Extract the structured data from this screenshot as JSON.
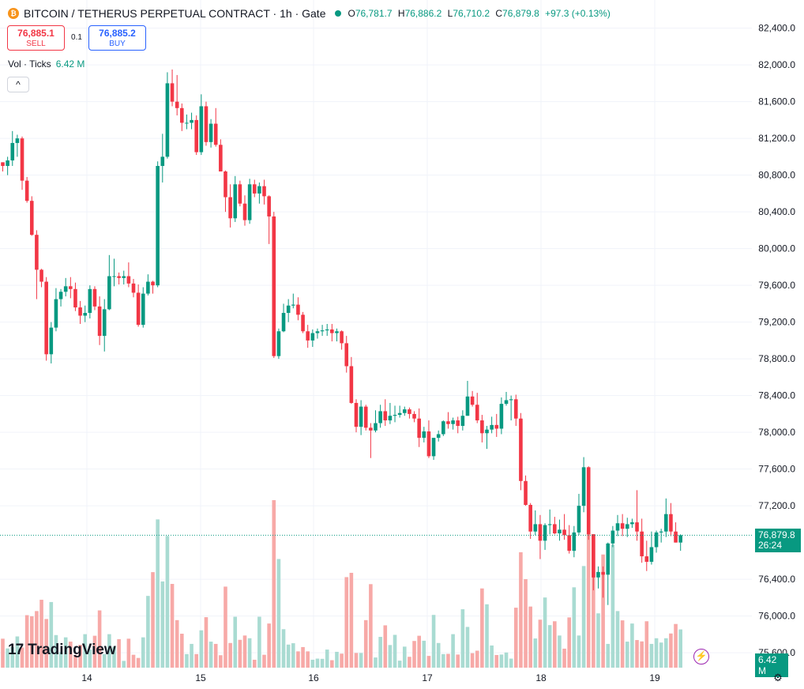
{
  "header": {
    "coin_glyph": "₿",
    "title": "BITCOIN / TETHERUS PERPETUAL CONTRACT · 1h · Gate",
    "o_label": "O",
    "o": "76,781.7",
    "h_label": "H",
    "h": "76,886.2",
    "l_label": "L",
    "l": "76,710.2",
    "c_label": "C",
    "c": "76,879.8",
    "change": "+97.3 (+0.13%)"
  },
  "trade": {
    "sell_price": "76,885.1",
    "sell_label": "SELL",
    "spread": "0.1",
    "buy_price": "76,885.2",
    "buy_label": "BUY"
  },
  "volume_legend": {
    "label": "Vol · Ticks",
    "value": "6.42 M"
  },
  "price_tag": {
    "price": "76,879.8",
    "countdown": "26:24"
  },
  "volume_tag": "6.42 M",
  "branding": {
    "logo": "TradingView"
  },
  "icons": {
    "collapse": "chevron-up-icon",
    "lightning": "lightning-icon",
    "settings": "gear-icon"
  },
  "colors": {
    "up": "#089981",
    "down": "#f23645",
    "up_vol": "#a9dbd2",
    "down_vol": "#f7a9a7",
    "grid": "#f0f3fa"
  },
  "chart_data": {
    "type": "candlestick",
    "title": "BITCOIN / TETHERUS PERPETUAL CONTRACT · 1h · Gate",
    "interval": "1h",
    "y_axis_labels": [
      "82,400.0",
      "82,000.0",
      "81,600.0",
      "81,200.0",
      "80,800.0",
      "80,400.0",
      "80,000.0",
      "79,600.0",
      "79,200.0",
      "78,800.0",
      "78,400.0",
      "78,000.0",
      "77,600.0",
      "77,200.0",
      "76,400.0",
      "76,000.0",
      "75,600.0"
    ],
    "ylim": [
      75500,
      82500
    ],
    "x_tick_labels": [
      "14",
      "15",
      "16",
      "17",
      "18",
      "19"
    ],
    "last_price": 76879.8,
    "volume_peak": 7400,
    "candles": [
      [
        80940,
        80940,
        80840,
        80900,
        1280
      ],
      [
        80900,
        81000,
        80800,
        80960,
        850
      ],
      [
        80960,
        81280,
        80900,
        81150,
        910
      ],
      [
        81150,
        81240,
        81000,
        81200,
        1380
      ],
      [
        81200,
        81220,
        80640,
        80740,
        890
      ],
      [
        80740,
        80780,
        80500,
        80520,
        2320
      ],
      [
        80520,
        80570,
        80140,
        80150,
        2270
      ],
      [
        80150,
        80200,
        79450,
        79770,
        2500
      ],
      [
        79770,
        79780,
        79580,
        79640,
        3000
      ],
      [
        79640,
        79690,
        78780,
        78850,
        2150
      ],
      [
        78850,
        79200,
        78750,
        79140,
        2900
      ],
      [
        79140,
        79570,
        79100,
        79450,
        1440
      ],
      [
        79450,
        79560,
        79370,
        79530,
        690
      ],
      [
        79530,
        79680,
        79480,
        79590,
        1340
      ],
      [
        79590,
        79690,
        79460,
        79560,
        1150
      ],
      [
        79560,
        79630,
        79320,
        79360,
        560
      ],
      [
        79360,
        79430,
        79180,
        79270,
        1010
      ],
      [
        79270,
        79380,
        79200,
        79300,
        1480
      ],
      [
        79300,
        79600,
        79240,
        79560,
        800
      ],
      [
        79560,
        79590,
        79330,
        79370,
        1410
      ],
      [
        79370,
        79480,
        78950,
        79050,
        2530
      ],
      [
        79050,
        79450,
        78880,
        79340,
        600
      ],
      [
        79340,
        79930,
        79330,
        79700,
        1480
      ],
      [
        79700,
        79890,
        79590,
        79700,
        930
      ],
      [
        79700,
        79740,
        79610,
        79680,
        1260
      ],
      [
        79680,
        79760,
        79610,
        79700,
        300
      ],
      [
        79700,
        79850,
        79580,
        79620,
        1280
      ],
      [
        79620,
        79670,
        79470,
        79520,
        570
      ],
      [
        79520,
        79610,
        79150,
        79170,
        430
      ],
      [
        79170,
        79580,
        79140,
        79510,
        1340
      ],
      [
        79510,
        79720,
        79490,
        79640,
        3170
      ],
      [
        79640,
        79650,
        79510,
        79600,
        4220
      ],
      [
        79600,
        80950,
        79580,
        80900,
        6550
      ],
      [
        80900,
        81250,
        80720,
        81000,
        3810
      ],
      [
        81000,
        81920,
        80980,
        81800,
        5820
      ],
      [
        81800,
        81950,
        81550,
        81600,
        3700
      ],
      [
        81600,
        81890,
        81450,
        81530,
        2100
      ],
      [
        81530,
        81580,
        81280,
        81370,
        1500
      ],
      [
        81370,
        81460,
        81300,
        81370,
        600
      ],
      [
        81370,
        81480,
        81300,
        81400,
        1050
      ],
      [
        81400,
        81450,
        81020,
        81050,
        600
      ],
      [
        81050,
        81680,
        81020,
        81550,
        1650
      ],
      [
        81550,
        81600,
        81120,
        81160,
        2230
      ],
      [
        81160,
        81410,
        81100,
        81360,
        1150
      ],
      [
        81360,
        81530,
        81110,
        81130,
        1050
      ],
      [
        81130,
        81190,
        80840,
        80840,
        550
      ],
      [
        80840,
        80850,
        80400,
        80560,
        3580
      ],
      [
        80560,
        80700,
        80230,
        80330,
        1090
      ],
      [
        80330,
        80790,
        80290,
        80700,
        2250
      ],
      [
        80700,
        80740,
        80460,
        80490,
        1230
      ],
      [
        80490,
        80580,
        80250,
        80310,
        1420
      ],
      [
        80310,
        80760,
        80270,
        80700,
        1300
      ],
      [
        80700,
        80750,
        80560,
        80600,
        350
      ],
      [
        80600,
        80720,
        80490,
        80680,
        2250
      ],
      [
        80680,
        80750,
        80480,
        80570,
        570
      ],
      [
        80570,
        80580,
        80050,
        80350,
        1950
      ],
      [
        80350,
        80400,
        78810,
        78830,
        7400
      ],
      [
        78830,
        79130,
        78800,
        79100,
        4800
      ],
      [
        79100,
        79400,
        79090,
        79300,
        1700
      ],
      [
        79300,
        79450,
        79200,
        79380,
        1020
      ],
      [
        79380,
        79510,
        79350,
        79390,
        1080
      ],
      [
        79390,
        79470,
        79220,
        79280,
        720
      ],
      [
        79280,
        79310,
        79080,
        79100,
        910
      ],
      [
        79100,
        79170,
        78920,
        79000,
        720
      ],
      [
        79000,
        79120,
        78930,
        79080,
        350
      ],
      [
        79080,
        79130,
        79020,
        79100,
        400
      ],
      [
        79100,
        79170,
        79050,
        79110,
        390
      ],
      [
        79110,
        79180,
        79050,
        79120,
        800
      ],
      [
        79120,
        79180,
        78990,
        79080,
        330
      ],
      [
        79080,
        79130,
        78990,
        79100,
        700
      ],
      [
        79100,
        79110,
        78900,
        78970,
        620
      ],
      [
        78970,
        79050,
        78650,
        78720,
        4000
      ],
      [
        78720,
        78820,
        78310,
        78320,
        4190
      ],
      [
        78320,
        78360,
        78000,
        78060,
        650
      ],
      [
        78060,
        78350,
        77970,
        78280,
        650
      ],
      [
        78280,
        78300,
        78020,
        78050,
        2100
      ],
      [
        78050,
        78100,
        77720,
        78020,
        3690
      ],
      [
        78020,
        78240,
        78000,
        78100,
        450
      ],
      [
        78100,
        78300,
        78050,
        78230,
        1360
      ],
      [
        78230,
        78360,
        78070,
        78130,
        1870
      ],
      [
        78130,
        78320,
        78090,
        78180,
        1000
      ],
      [
        78180,
        78290,
        78110,
        78190,
        1450
      ],
      [
        78190,
        78290,
        78160,
        78210,
        310
      ],
      [
        78210,
        78280,
        78180,
        78250,
        930
      ],
      [
        78250,
        78270,
        78150,
        78200,
        480
      ],
      [
        78200,
        78230,
        78110,
        78150,
        1180
      ],
      [
        78150,
        78260,
        77840,
        77940,
        1410
      ],
      [
        77940,
        78060,
        77890,
        78010,
        1190
      ],
      [
        78010,
        78130,
        77720,
        77740,
        520
      ],
      [
        77740,
        77930,
        77700,
        77940,
        2330
      ],
      [
        77940,
        78020,
        77900,
        77980,
        1090
      ],
      [
        77980,
        78130,
        77960,
        78120,
        600
      ],
      [
        78120,
        78220,
        78040,
        78090,
        610
      ],
      [
        78090,
        78160,
        78030,
        78130,
        1480
      ],
      [
        78130,
        78170,
        77990,
        78070,
        580
      ],
      [
        78070,
        78240,
        78020,
        78180,
        2580
      ],
      [
        78180,
        78560,
        78180,
        78390,
        1800
      ],
      [
        78390,
        78450,
        78280,
        78300,
        640
      ],
      [
        78300,
        78430,
        78100,
        78130,
        750
      ],
      [
        78130,
        78190,
        77890,
        77990,
        3500
      ],
      [
        77990,
        78070,
        77820,
        78030,
        2800
      ],
      [
        78030,
        78170,
        77990,
        78080,
        980
      ],
      [
        78080,
        78200,
        77950,
        78040,
        560
      ],
      [
        78040,
        78380,
        77980,
        78310,
        580
      ],
      [
        78310,
        78440,
        78290,
        78350,
        670
      ],
      [
        78350,
        78400,
        78130,
        78360,
        400
      ],
      [
        78360,
        78410,
        78070,
        78150,
        2650
      ],
      [
        78150,
        78210,
        77370,
        77470,
        5100
      ],
      [
        77470,
        77530,
        77200,
        77210,
        3910
      ],
      [
        77210,
        77230,
        76840,
        76920,
        2700
      ],
      [
        76920,
        77150,
        76880,
        77000,
        1290
      ],
      [
        77000,
        77100,
        76620,
        76820,
        2120
      ],
      [
        76820,
        77010,
        76720,
        76990,
        3100
      ],
      [
        76990,
        77160,
        76890,
        77000,
        1880
      ],
      [
        77000,
        77080,
        76890,
        76900,
        2050
      ],
      [
        76900,
        77050,
        76820,
        76940,
        1420
      ],
      [
        76940,
        77110,
        76830,
        76880,
        840
      ],
      [
        76880,
        76990,
        76680,
        76710,
        2220
      ],
      [
        76710,
        76980,
        76640,
        76910,
        3550
      ],
      [
        76910,
        77330,
        76880,
        77200,
        1420
      ],
      [
        77200,
        77730,
        77130,
        77620,
        4490
      ],
      [
        77620,
        77630,
        76830,
        76890,
        5930
      ],
      [
        76890,
        76890,
        76280,
        76420,
        5900
      ],
      [
        76420,
        76540,
        76300,
        76480,
        2400
      ],
      [
        76480,
        76540,
        76200,
        76450,
        5000
      ],
      [
        76450,
        76800,
        76120,
        76790,
        1050
      ],
      [
        76790,
        76980,
        76750,
        76930,
        5430
      ],
      [
        76930,
        77100,
        76870,
        77010,
        2500
      ],
      [
        77010,
        77110,
        76870,
        76950,
        2090
      ],
      [
        76950,
        77070,
        76860,
        77000,
        1150
      ],
      [
        77000,
        77060,
        76960,
        77020,
        1950
      ],
      [
        77020,
        77370,
        76820,
        76920,
        1220
      ],
      [
        76920,
        77060,
        76580,
        76650,
        1160
      ],
      [
        76650,
        76820,
        76490,
        76590,
        2050
      ],
      [
        76590,
        76920,
        76560,
        76750,
        1050
      ],
      [
        76750,
        76930,
        76690,
        76910,
        1300
      ],
      [
        76910,
        76950,
        76800,
        76920,
        1110
      ],
      [
        76920,
        77280,
        76860,
        77110,
        1300
      ],
      [
        77110,
        77230,
        76870,
        76920,
        1510
      ],
      [
        76920,
        77020,
        76800,
        76800,
        1930
      ],
      [
        76800,
        76890,
        76710,
        76880,
        1690
      ]
    ]
  }
}
